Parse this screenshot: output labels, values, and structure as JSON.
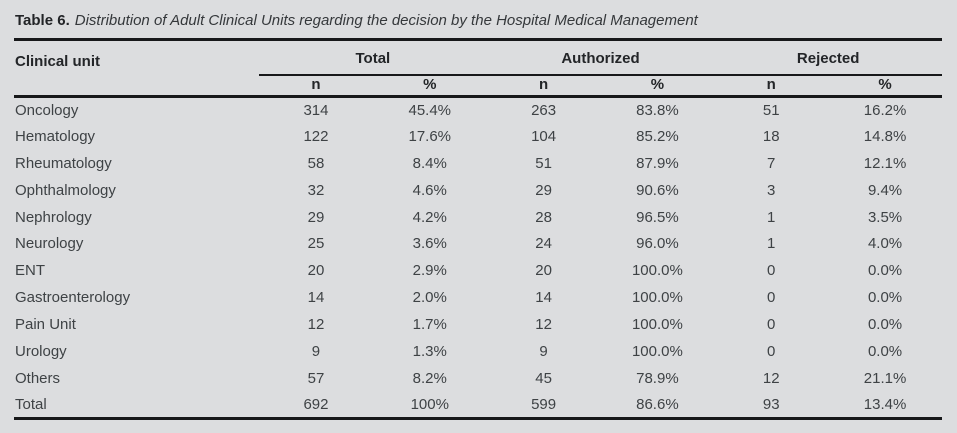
{
  "caption": {
    "label": "Table 6.",
    "text": "Distribution of Adult Clinical Units regarding the decision by the Hospital Medical Management"
  },
  "table": {
    "row_header": "Clinical unit",
    "groups": [
      "Total",
      "Authorized",
      "Rejected"
    ],
    "subheaders": [
      "n",
      "%",
      "n",
      "%",
      "n",
      "%"
    ],
    "rows": [
      {
        "unit": "Oncology",
        "values": [
          "314",
          "45.4%",
          "263",
          "83.8%",
          "51",
          "16.2%"
        ]
      },
      {
        "unit": "Hematology",
        "values": [
          "122",
          "17.6%",
          "104",
          "85.2%",
          "18",
          "14.8%"
        ]
      },
      {
        "unit": "Rheumatology",
        "values": [
          "58",
          "8.4%",
          "51",
          "87.9%",
          "7",
          "12.1%"
        ]
      },
      {
        "unit": "Ophthalmology",
        "values": [
          "32",
          "4.6%",
          "29",
          "90.6%",
          "3",
          "9.4%"
        ]
      },
      {
        "unit": "Nephrology",
        "values": [
          "29",
          "4.2%",
          "28",
          "96.5%",
          "1",
          "3.5%"
        ]
      },
      {
        "unit": "Neurology",
        "values": [
          "25",
          "3.6%",
          "24",
          "96.0%",
          "1",
          "4.0%"
        ]
      },
      {
        "unit": "ENT",
        "values": [
          "20",
          "2.9%",
          "20",
          "100.0%",
          "0",
          "0.0%"
        ]
      },
      {
        "unit": "Gastroenterology",
        "values": [
          "14",
          "2.0%",
          "14",
          "100.0%",
          "0",
          "0.0%"
        ]
      },
      {
        "unit": "Pain Unit",
        "values": [
          "12",
          "1.7%",
          "12",
          "100.0%",
          "0",
          "0.0%"
        ]
      },
      {
        "unit": "Urology",
        "values": [
          "9",
          "1.3%",
          "9",
          "100.0%",
          "0",
          "0.0%"
        ]
      },
      {
        "unit": "Others",
        "values": [
          "57",
          "8.2%",
          "45",
          "78.9%",
          "12",
          "21.1%"
        ]
      },
      {
        "unit": "Total",
        "values": [
          "692",
          "100%",
          "599",
          "86.6%",
          "93",
          "13.4%"
        ]
      }
    ]
  },
  "colors": {
    "background": "#dcdddf",
    "rule": "#17181a",
    "body_text": "#3e4245",
    "heading_text": "#232528"
  }
}
